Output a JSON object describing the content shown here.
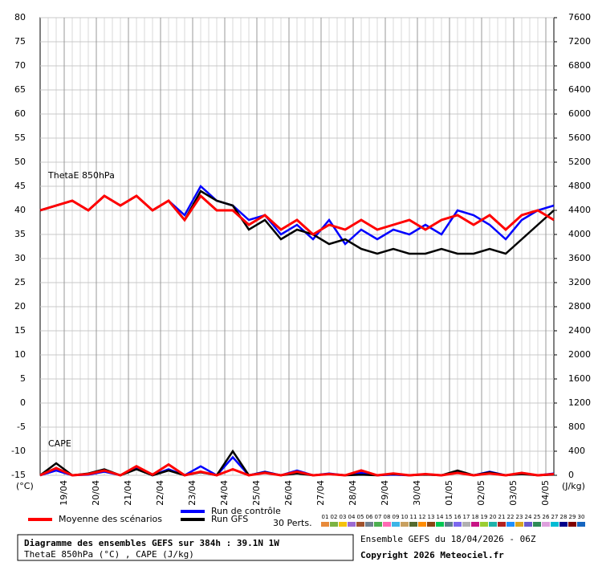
{
  "chart_data": {
    "type": "line",
    "title": "Diagramme des ensembles GEFS sur 384h : 39.1N 1W",
    "subtitle": "ThetaE 850hPa (°C) , CAPE (J/kg)",
    "run_label": "Ensemble GEFS du 18/04/2026 - 06Z",
    "copyright": "Copyright 2026 Meteociel.fr",
    "y_label": "(°C)",
    "y2_label": "(J/kg)",
    "annotations": [
      "ThetaE 850hPa",
      "CAPE"
    ],
    "x": [
      0,
      12,
      24,
      36,
      48,
      60,
      72,
      84,
      96,
      108,
      120,
      132,
      144,
      156,
      168,
      180,
      192,
      204,
      216,
      228,
      240,
      252,
      264,
      276,
      288,
      300,
      312,
      324,
      336,
      348,
      360,
      372,
      384
    ],
    "xlim": [
      0,
      384
    ],
    "xticks": [
      {
        "value": 18,
        "label": "19/04"
      },
      {
        "value": 42,
        "label": "20/04"
      },
      {
        "value": 66,
        "label": "21/04"
      },
      {
        "value": 90,
        "label": "22/04"
      },
      {
        "value": 114,
        "label": "23/04"
      },
      {
        "value": 138,
        "label": "24/04"
      },
      {
        "value": 162,
        "label": "25/04"
      },
      {
        "value": 186,
        "label": "26/04"
      },
      {
        "value": 210,
        "label": "27/04"
      },
      {
        "value": 234,
        "label": "28/04"
      },
      {
        "value": 258,
        "label": "29/04"
      },
      {
        "value": 282,
        "label": "30/04"
      },
      {
        "value": 306,
        "label": "01/05"
      },
      {
        "value": 330,
        "label": "02/05"
      },
      {
        "value": 354,
        "label": "03/05"
      },
      {
        "value": 378,
        "label": "04/05"
      }
    ],
    "ylim": [
      -15,
      80
    ],
    "yticks": [
      -15,
      -10,
      -5,
      0,
      5,
      10,
      15,
      20,
      25,
      30,
      35,
      40,
      45,
      50,
      55,
      60,
      65,
      70,
      75,
      80
    ],
    "y2lim": [
      0,
      7600
    ],
    "y2ticks": [
      0,
      400,
      800,
      1200,
      1600,
      2000,
      2400,
      2800,
      3200,
      3600,
      4000,
      4400,
      4800,
      5200,
      5600,
      6000,
      6400,
      6800,
      7200,
      7600
    ],
    "grid": true,
    "series": [
      {
        "name": "Moyenne des scénarios",
        "color": "#ff0000",
        "values": [
          40,
          41,
          42,
          40,
          43,
          41,
          43,
          40,
          42,
          38,
          43,
          40,
          40,
          37,
          39,
          36,
          38,
          35,
          37,
          36,
          38,
          36,
          37,
          38,
          36,
          38,
          39,
          37,
          39,
          36,
          39,
          40,
          38
        ]
      },
      {
        "name": "Run de contrôle",
        "color": "#0000ff",
        "values": [
          40,
          41,
          42,
          40,
          43,
          41,
          43,
          40,
          42,
          39,
          45,
          42,
          41,
          38,
          39,
          35,
          37,
          34,
          38,
          33,
          36,
          34,
          36,
          35,
          37,
          35,
          40,
          39,
          37,
          34,
          38,
          40,
          41
        ]
      },
      {
        "name": "Run GFS",
        "color": "#000000",
        "values": [
          40,
          41,
          42,
          40,
          43,
          41,
          43,
          40,
          42,
          38,
          44,
          42,
          41,
          36,
          38,
          34,
          36,
          35,
          33,
          34,
          32,
          31,
          32,
          31,
          31,
          32,
          31,
          31,
          32,
          31,
          34,
          37,
          40
        ]
      },
      {
        "name": "Moyenne des scénarios",
        "color": "#ff0000",
        "axis": "y2",
        "values": [
          0,
          120,
          0,
          20,
          80,
          0,
          150,
          10,
          180,
          0,
          60,
          0,
          100,
          0,
          40,
          0,
          60,
          0,
          20,
          0,
          80,
          0,
          30,
          0,
          20,
          0,
          40,
          0,
          30,
          0,
          40,
          0,
          20
        ]
      },
      {
        "name": "Run de contrôle",
        "color": "#0000ff",
        "axis": "y2",
        "values": [
          0,
          80,
          0,
          10,
          60,
          0,
          120,
          0,
          100,
          0,
          150,
          0,
          300,
          0,
          60,
          0,
          80,
          0,
          30,
          0,
          40,
          0,
          10,
          0,
          20,
          0,
          50,
          0,
          60,
          0,
          40,
          0,
          30
        ]
      },
      {
        "name": "Run GFS",
        "color": "#000000",
        "axis": "y2",
        "values": [
          0,
          200,
          0,
          30,
          100,
          0,
          100,
          0,
          80,
          0,
          50,
          0,
          400,
          0,
          50,
          0,
          30,
          0,
          20,
          0,
          10,
          0,
          20,
          0,
          10,
          0,
          80,
          0,
          50,
          0,
          20,
          0,
          10
        ]
      }
    ],
    "perturbations_label": "30 Perts.",
    "perturbations": [
      {
        "name": "01",
        "color": "#e88a3a"
      },
      {
        "name": "02",
        "color": "#7cb342"
      },
      {
        "name": "03",
        "color": "#f4c20d"
      },
      {
        "name": "04",
        "color": "#9c6bd1"
      },
      {
        "name": "05",
        "color": "#a0522d"
      },
      {
        "name": "06",
        "color": "#708090"
      },
      {
        "name": "07",
        "color": "#4caf50"
      },
      {
        "name": "08",
        "color": "#ff69b4"
      },
      {
        "name": "09",
        "color": "#3cb4e6"
      },
      {
        "name": "10",
        "color": "#c8a060"
      },
      {
        "name": "11",
        "color": "#556b2f"
      },
      {
        "name": "12",
        "color": "#ff8c00"
      },
      {
        "name": "13",
        "color": "#8b4513"
      },
      {
        "name": "14",
        "color": "#00c853"
      },
      {
        "name": "15",
        "color": "#607d8b"
      },
      {
        "name": "16",
        "color": "#7b68ee"
      },
      {
        "name": "17",
        "color": "#b0b0b0"
      },
      {
        "name": "18",
        "color": "#c71585"
      },
      {
        "name": "19",
        "color": "#9acd32"
      },
      {
        "name": "20",
        "color": "#20b2aa"
      },
      {
        "name": "21",
        "color": "#b22222"
      },
      {
        "name": "22",
        "color": "#1e90ff"
      },
      {
        "name": "23",
        "color": "#daa520"
      },
      {
        "name": "24",
        "color": "#6a5acd"
      },
      {
        "name": "25",
        "color": "#2e8b57"
      },
      {
        "name": "26",
        "color": "#dda0dd"
      },
      {
        "name": "27",
        "color": "#00bcd4"
      },
      {
        "name": "28",
        "color": "#00008b"
      },
      {
        "name": "29",
        "color": "#800000"
      },
      {
        "name": "30",
        "color": "#1565c0"
      }
    ]
  }
}
